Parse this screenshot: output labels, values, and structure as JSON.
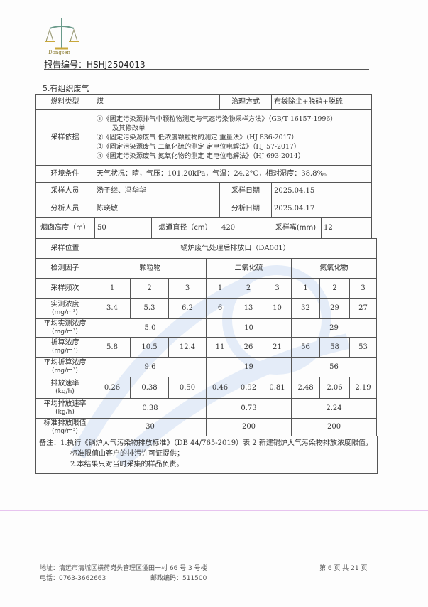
{
  "header": {
    "logo_text": "Dongsen",
    "report_no": "报告编号：HSHJ2504013"
  },
  "section_title": "5.有组织废气",
  "info": {
    "fuel_label": "燃料类型",
    "fuel": "煤",
    "treat_label": "治理方式",
    "treat": "布袋除尘+脱硝+脱硫",
    "basis_label": "采样依据",
    "basis": [
      "①《固定污染源排气中颗粒物测定与气态污染物采样方法》（GB/T 16157-1996）",
      "及其修改单",
      "②《固定污染源废气 低浓度颗粒物的测定 重量法》（HJ 836-2017）",
      "③《固定污染源废气 二氧化硫的测定 定电位电解法》（HJ 57-2017）",
      "④《固定污染源废气 氮氧化物的测定 定电位电解法》（HJ 693-2014）"
    ],
    "env_label": "环境条件",
    "env": "天气状况：晴，气压：101.20kPa，气温：24.2°C，相对湿度：38.8%。",
    "sampler_label": "采样人员",
    "sampler": "汤子继、冯华华",
    "sample_date_label": "采样日期",
    "sample_date": "2025.04.15",
    "analyst_label": "分析人员",
    "analyst": "陈晓敏",
    "analysis_date_label": "分析日期",
    "analysis_date": "2025.04.17",
    "stack_h_label": "烟囱高度（m）",
    "stack_h": "50",
    "duct_d_label": "烟道直径（cm）",
    "duct_d": "420",
    "nozzle_label": "采样嘴(mm)",
    "nozzle": "12"
  },
  "results": {
    "location_label": "采样位置",
    "location": "锅炉废气处理后排放口（DA001）",
    "factor_label": "检测因子",
    "factors": [
      "颗粒物",
      "二氧化硫",
      "氮氧化物"
    ],
    "freq_label": "采样频次",
    "freq": [
      "1",
      "2",
      "3",
      "1",
      "2",
      "3",
      "1",
      "2",
      "3"
    ],
    "unit_conc": "(mg/m³)",
    "unit_rate": "(kg/h)",
    "measured_label": "实测浓度",
    "measured": [
      "3.4",
      "5.3",
      "6.2",
      "6",
      "13",
      "10",
      "32",
      "29",
      "27"
    ],
    "avg_measured_label": "平均实测浓度",
    "avg_measured": [
      "5.0",
      "10",
      "29"
    ],
    "converted_label": "折算浓度",
    "converted": [
      "5.8",
      "10.5",
      "12.4",
      "11",
      "26",
      "21",
      "56",
      "58",
      "53"
    ],
    "avg_converted_label": "平均折算浓度",
    "avg_converted": [
      "9.6",
      "19",
      "56"
    ],
    "rate_label": "排放速率",
    "rate": [
      "0.26",
      "0.38",
      "0.50",
      "0.46",
      "0.92",
      "0.81",
      "2.48",
      "2.06",
      "2.19"
    ],
    "avg_rate_label": "平均排放速率",
    "avg_rate": [
      "0.38",
      "0.73",
      "2.24"
    ],
    "limit_label": "标准排放限值",
    "limit": [
      "30",
      "200",
      "200"
    ]
  },
  "notes": [
    "备注：1.执行《锅炉大气污染物排放标准》（DB 44/765-2019）表 2 新建锅炉大气污染物排放浓度限值，",
    "标准限值由客户的排污许可证提供；",
    "2.本结果只对当时采集的样品负责。"
  ],
  "footer": {
    "address": "地址：清远市清城区横荷岗头管理区湴田一村 66 号 3 号楼",
    "phone": "电话：0763-3662663",
    "postcode": "邮政编码：511500",
    "page": "第 6 页 共 21 页"
  }
}
